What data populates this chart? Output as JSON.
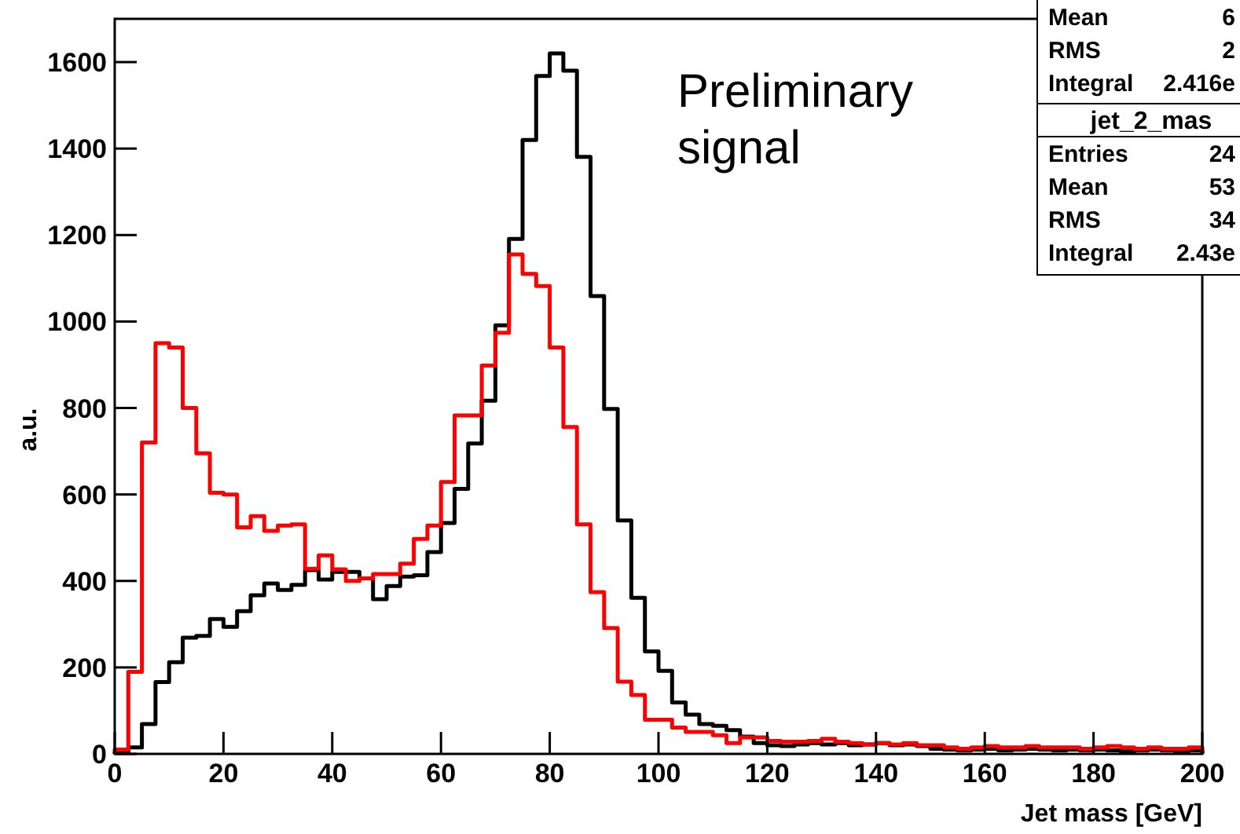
{
  "chart_data": {
    "type": "histogram",
    "xlabel": "Jet mass [GeV]",
    "ylabel": "a.u.",
    "bins": [
      0,
      2.5,
      5,
      7.5,
      10,
      12.5,
      15,
      17.5,
      20,
      22.5,
      25,
      27.5,
      30,
      32.5,
      35,
      37.5,
      40,
      42.5,
      45,
      47.5,
      50,
      52.5,
      55,
      57.5,
      60,
      62.5,
      65,
      67.5,
      70,
      72.5,
      75,
      77.5,
      80,
      82.5,
      85,
      87.5,
      90,
      92.5,
      95,
      97.5,
      100,
      102.5,
      105,
      107.5,
      110,
      112.5,
      115,
      117.5,
      120,
      122.5,
      125,
      127.5,
      130,
      132.5,
      135,
      137.5,
      140,
      142.5,
      145,
      147.5,
      150,
      152.5,
      155,
      157.5,
      160,
      162.5,
      165,
      167.5,
      170,
      172.5,
      175,
      177.5,
      180,
      182.5,
      185,
      187.5,
      190,
      192.5,
      195,
      197.5,
      200
    ],
    "series": [
      {
        "color": "#000000",
        "values": [
          3,
          15,
          69,
          166,
          212,
          269,
          273,
          312,
          294,
          330,
          367,
          394,
          379,
          391,
          425,
          403,
          421,
          421,
          406,
          358,
          388,
          410,
          413,
          467,
          534,
          613,
          718,
          817,
          991,
          1191,
          1420,
          1568,
          1620,
          1580,
          1381,
          1059,
          798,
          540,
          361,
          237,
          192,
          119,
          91,
          69,
          65,
          55,
          40,
          25,
          20,
          18,
          22,
          25,
          22,
          25,
          20,
          22,
          25,
          20,
          22,
          18,
          12,
          10,
          8,
          10,
          12,
          8,
          10,
          12,
          10,
          8,
          10,
          8,
          10,
          8,
          6,
          8,
          10,
          8,
          6,
          8
        ]
      },
      {
        "color": "#ff0000",
        "values": [
          10,
          190,
          720,
          950,
          940,
          800,
          695,
          604,
          600,
          524,
          550,
          516,
          528,
          531,
          428,
          459,
          427,
          400,
          406,
          416,
          416,
          440,
          497,
          528,
          629,
          783,
          783,
          898,
          974,
          1155,
          1110,
          1082,
          940,
          756,
          531,
          374,
          291,
          167,
          136,
          79,
          79,
          61,
          51,
          51,
          43,
          25,
          38,
          38,
          30,
          28,
          28,
          30,
          35,
          28,
          25,
          22,
          25,
          22,
          25,
          20,
          20,
          15,
          12,
          15,
          18,
          15,
          15,
          18,
          15,
          15,
          15,
          12,
          15,
          18,
          15,
          12,
          15,
          12,
          12,
          15
        ]
      }
    ],
    "xlim": [
      0,
      200
    ],
    "xticks": [
      0,
      20,
      40,
      60,
      80,
      100,
      120,
      140,
      160,
      180,
      200
    ],
    "ylim": [
      0,
      1700
    ],
    "yticks": [
      0,
      200,
      400,
      600,
      800,
      1000,
      1200,
      1400,
      1600
    ],
    "grid": false,
    "legend": false,
    "annotations": [
      "Preliminary signal",
      "Mean 6",
      "RMS 2",
      "Integral 2.416e",
      "jet_2_mas",
      "Entries 24",
      "Mean 53",
      "RMS 34",
      "Integral 2.43e"
    ]
  }
}
